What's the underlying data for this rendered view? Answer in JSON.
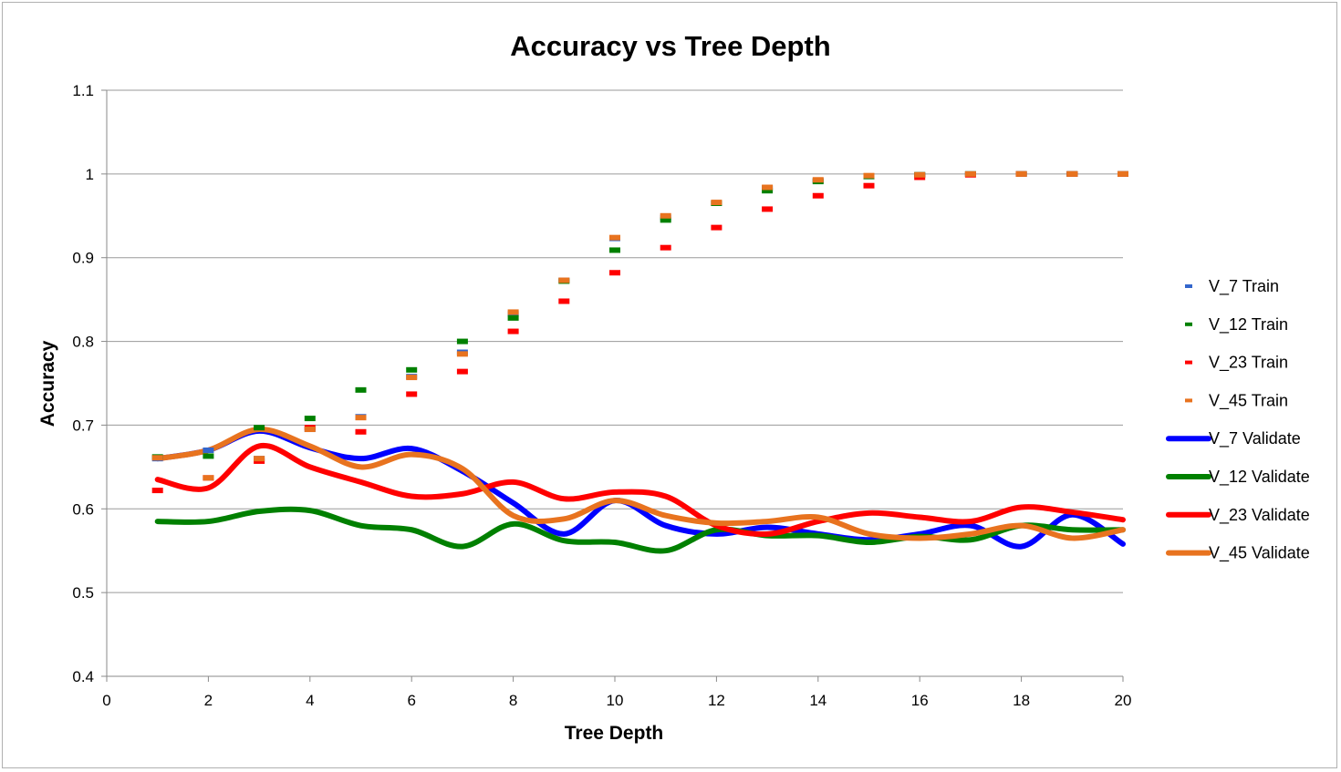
{
  "chart_data": {
    "type": "line",
    "title": "Accuracy vs Tree Depth",
    "xlabel": "Tree Depth",
    "ylabel": "Accuracy",
    "xlim": [
      0,
      20
    ],
    "ylim": [
      0.4,
      1.1
    ],
    "x_ticks": [
      "0",
      "2",
      "4",
      "6",
      "8",
      "10",
      "12",
      "14",
      "16",
      "18",
      "20"
    ],
    "y_ticks": [
      "0.4",
      "0.5",
      "0.6",
      "0.7",
      "0.8",
      "0.9",
      "1",
      "1.1"
    ],
    "grid": "horizontal",
    "legend_position": "right",
    "x": [
      1,
      2,
      3,
      4,
      5,
      6,
      7,
      8,
      9,
      10,
      11,
      12,
      13,
      14,
      15,
      16,
      17,
      18,
      19,
      20
    ],
    "series": [
      {
        "name": "V_7 Train",
        "style": "marker",
        "color": "#3366cc",
        "values": [
          0.66,
          0.67,
          0.66,
          0.695,
          0.71,
          0.758,
          0.787,
          0.833,
          0.873,
          0.923,
          0.948,
          0.965,
          0.983,
          0.992,
          0.997,
          0.999,
          1.0,
          1.0,
          1.0,
          1.0
        ]
      },
      {
        "name": "V_12 Train",
        "style": "marker",
        "color": "#008000",
        "values": [
          0.662,
          0.663,
          0.697,
          0.708,
          0.742,
          0.766,
          0.8,
          0.828,
          0.872,
          0.909,
          0.945,
          0.965,
          0.98,
          0.991,
          0.997,
          0.999,
          1.0,
          1.0,
          1.0,
          1.0
        ]
      },
      {
        "name": "V_23 Train",
        "style": "marker",
        "color": "#ff0000",
        "values": [
          0.622,
          0.637,
          0.657,
          0.697,
          0.692,
          0.737,
          0.764,
          0.812,
          0.848,
          0.882,
          0.912,
          0.936,
          0.958,
          0.974,
          0.986,
          0.996,
          0.999,
          1.0,
          1.0,
          1.0
        ]
      },
      {
        "name": "V_45 Train",
        "style": "marker",
        "color": "#e8731f",
        "values": [
          0.661,
          0.637,
          0.66,
          0.695,
          0.709,
          0.757,
          0.785,
          0.835,
          0.873,
          0.924,
          0.95,
          0.966,
          0.984,
          0.993,
          0.998,
          0.999,
          1.0,
          1.0,
          1.0,
          1.0
        ]
      },
      {
        "name": "V_7 Validate",
        "style": "line",
        "color": "#0000ff",
        "values": [
          0.66,
          0.67,
          0.693,
          0.673,
          0.66,
          0.672,
          0.645,
          0.607,
          0.57,
          0.61,
          0.58,
          0.57,
          0.578,
          0.57,
          0.563,
          0.57,
          0.58,
          0.555,
          0.593,
          0.558
        ]
      },
      {
        "name": "V_12 Validate",
        "style": "line",
        "color": "#008000",
        "values": [
          0.585,
          0.585,
          0.597,
          0.598,
          0.58,
          0.575,
          0.555,
          0.582,
          0.562,
          0.56,
          0.55,
          0.575,
          0.568,
          0.568,
          0.56,
          0.567,
          0.563,
          0.58,
          0.575,
          0.575
        ]
      },
      {
        "name": "V_23 Validate",
        "style": "line",
        "color": "#ff0000",
        "values": [
          0.635,
          0.625,
          0.675,
          0.65,
          0.632,
          0.615,
          0.618,
          0.632,
          0.612,
          0.62,
          0.615,
          0.58,
          0.57,
          0.585,
          0.595,
          0.59,
          0.585,
          0.602,
          0.596,
          0.587
        ]
      },
      {
        "name": "V_45 Validate",
        "style": "line",
        "color": "#e8731f",
        "values": [
          0.66,
          0.67,
          0.695,
          0.675,
          0.65,
          0.665,
          0.648,
          0.592,
          0.588,
          0.61,
          0.592,
          0.583,
          0.585,
          0.59,
          0.57,
          0.565,
          0.57,
          0.58,
          0.565,
          0.575
        ]
      }
    ]
  }
}
